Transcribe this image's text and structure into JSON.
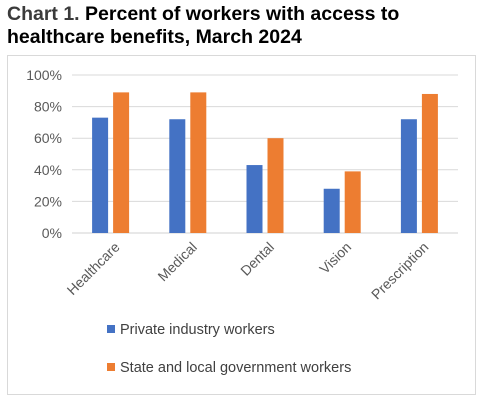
{
  "title": {
    "prefix": "Chart 1.",
    "text": "Percent of workers with access to healthcare benefits, March 2024"
  },
  "chart_data": {
    "type": "bar",
    "title": "Chart 1. Percent of workers with access to healthcare benefits, March 2024",
    "xlabel": "",
    "ylabel": "",
    "categories": [
      "Healthcare",
      "Medical",
      "Dental",
      "Vision",
      "Prescription"
    ],
    "series": [
      {
        "name": "Private industry workers",
        "color": "#4472c4",
        "values": [
          73,
          72,
          43,
          28,
          72
        ]
      },
      {
        "name": "State and local government workers",
        "color": "#ed7d31",
        "values": [
          89,
          89,
          60,
          39,
          88
        ]
      }
    ],
    "ylim": [
      0,
      100
    ],
    "yticks": [
      "0%",
      "20%",
      "40%",
      "60%",
      "80%",
      "100%"
    ],
    "grid": true,
    "legend_position": "bottom"
  }
}
